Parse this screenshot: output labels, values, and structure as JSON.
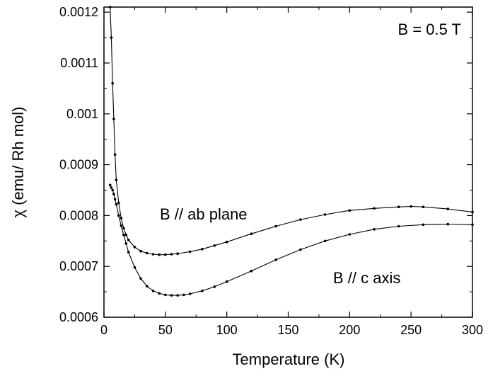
{
  "chart_data": {
    "type": "scatter",
    "title": "",
    "xlabel": "Temperature (K)",
    "ylabel": "χ (emu/ Rh mol)",
    "xlim": [
      0,
      300
    ],
    "ylim": [
      0.0006,
      0.00121
    ],
    "x_ticks": [
      0,
      50,
      100,
      150,
      200,
      250,
      300
    ],
    "x_tick_labels": [
      "0",
      "50",
      "100",
      "150",
      "200",
      "250",
      "300"
    ],
    "y_ticks": [
      0.0006,
      0.0007,
      0.0008,
      0.0009,
      0.001,
      0.0011,
      0.0012
    ],
    "y_tick_labels": [
      "0.0006",
      "0.0007",
      "0.0008",
      "0.0009",
      "0.001",
      "0.0011",
      "0.0012"
    ],
    "grid": false,
    "annotation": "B = 0.5 T",
    "series": [
      {
        "name": "B // ab plane",
        "color": "#000000",
        "x": [
          5,
          6,
          7,
          8,
          9,
          10,
          12,
          14,
          16,
          18,
          20,
          25,
          30,
          35,
          40,
          45,
          50,
          55,
          60,
          70,
          80,
          90,
          100,
          120,
          140,
          160,
          180,
          200,
          220,
          240,
          250,
          260,
          280,
          300
        ],
        "y": [
          0.00121,
          0.00115,
          0.00106,
          0.00099,
          0.00092,
          0.00087,
          0.000825,
          0.000795,
          0.000775,
          0.000762,
          0.000752,
          0.000738,
          0.00073,
          0.000726,
          0.000724,
          0.000723,
          0.000723,
          0.000724,
          0.000725,
          0.000729,
          0.000734,
          0.000741,
          0.000748,
          0.000764,
          0.000779,
          0.000792,
          0.000802,
          0.00081,
          0.000814,
          0.000817,
          0.000818,
          0.000817,
          0.000813,
          0.000807
        ]
      },
      {
        "name": "B // c axis",
        "color": "#000000",
        "x": [
          5,
          6,
          7,
          8,
          9,
          10,
          12,
          14,
          16,
          18,
          20,
          25,
          30,
          35,
          40,
          45,
          50,
          55,
          60,
          65,
          70,
          80,
          90,
          100,
          120,
          140,
          160,
          180,
          200,
          220,
          240,
          260,
          280,
          300
        ],
        "y": [
          0.00086,
          0.000855,
          0.00085,
          0.000842,
          0.000832,
          0.000822,
          0.0008,
          0.00078,
          0.000762,
          0.000745,
          0.000728,
          0.000698,
          0.000676,
          0.000661,
          0.000652,
          0.000647,
          0.000644,
          0.000643,
          0.000643,
          0.000644,
          0.000646,
          0.000652,
          0.00066,
          0.00067,
          0.000691,
          0.000713,
          0.000733,
          0.00075,
          0.000763,
          0.000773,
          0.000779,
          0.000782,
          0.000783,
          0.000782
        ]
      }
    ]
  }
}
